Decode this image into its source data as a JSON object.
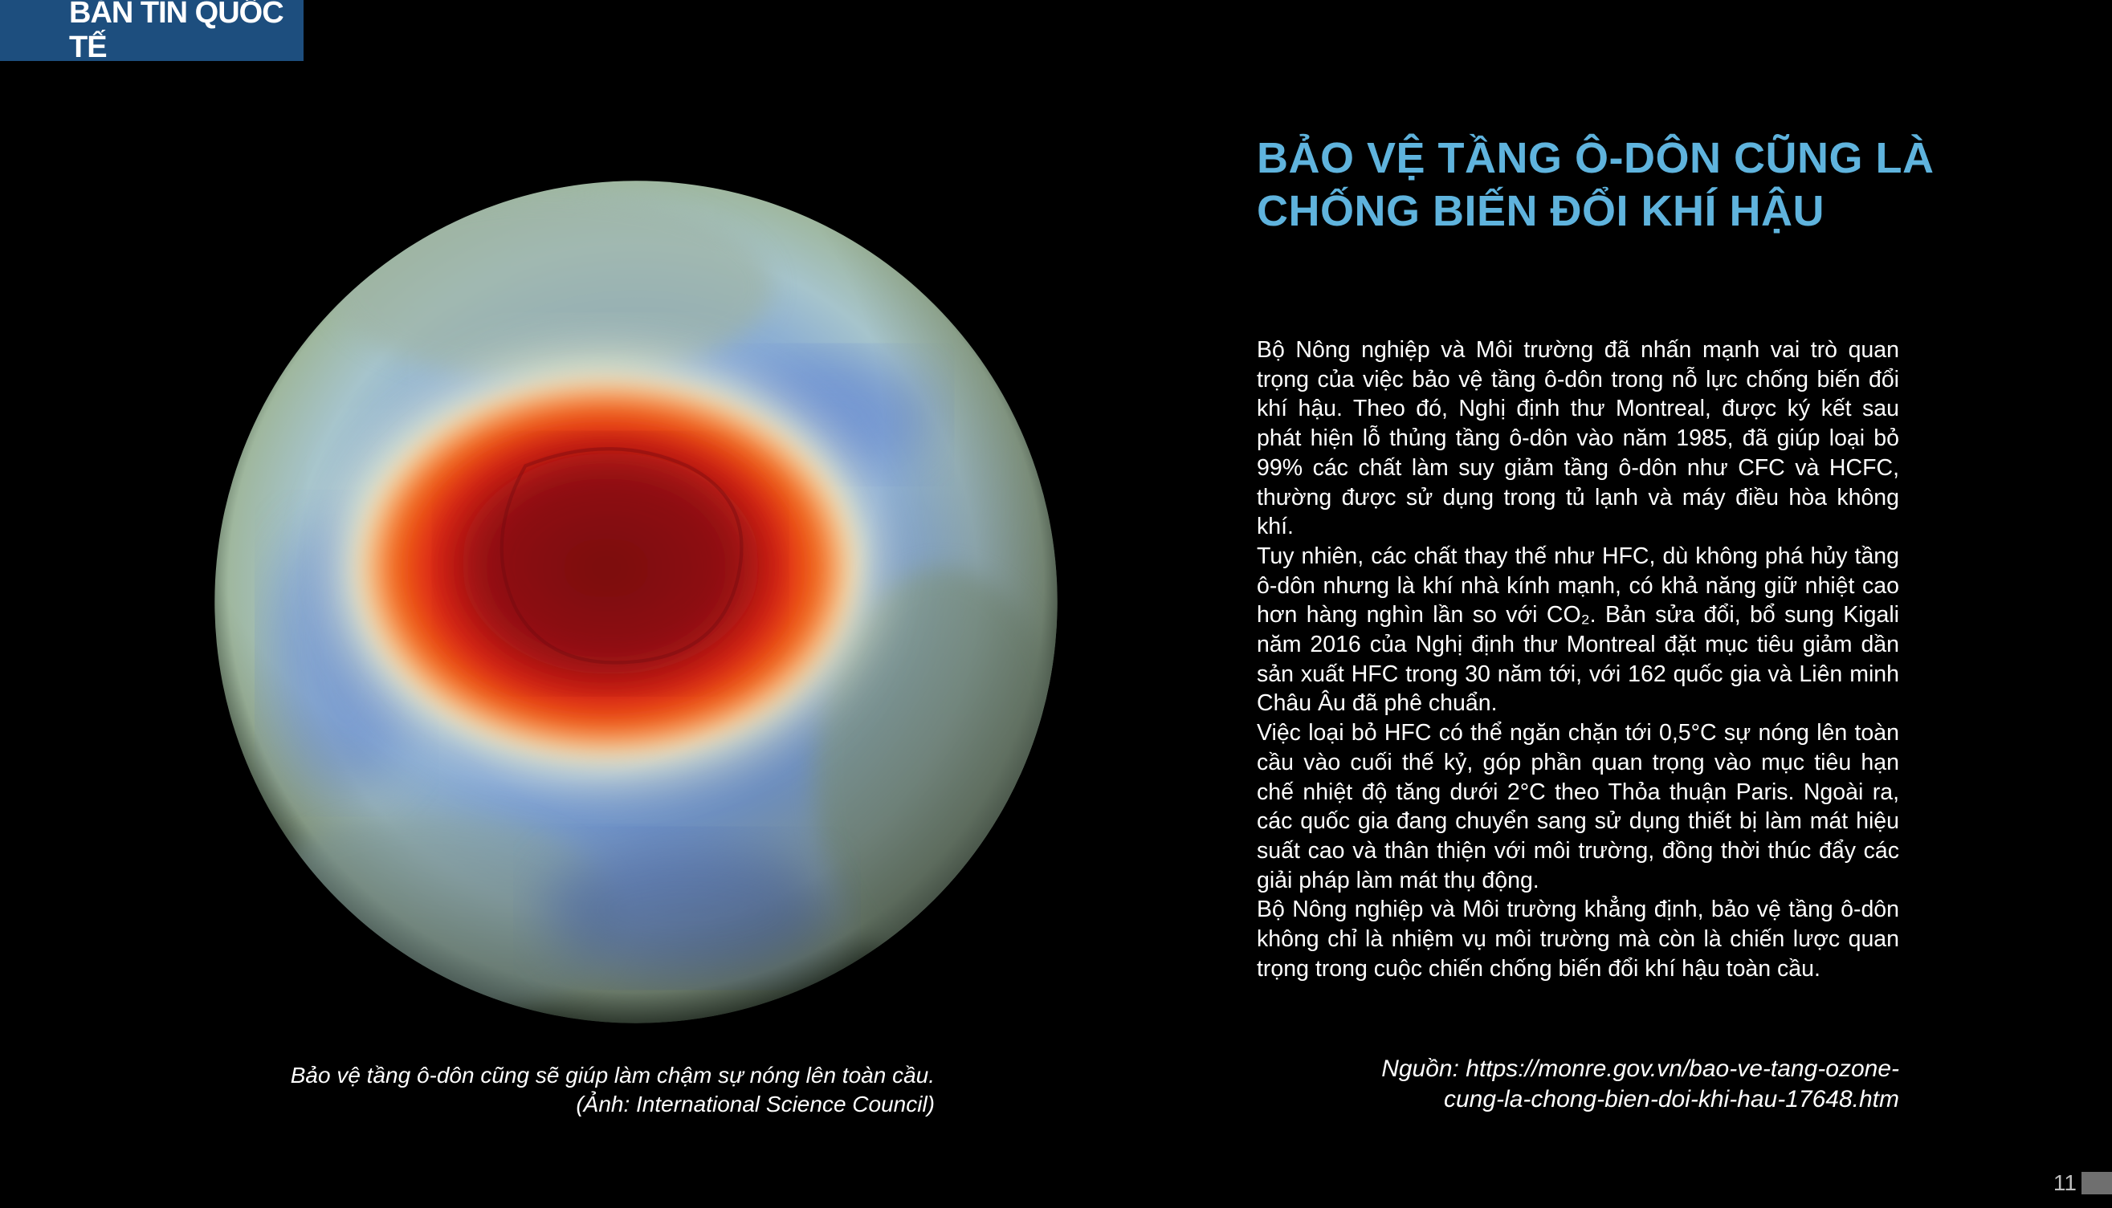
{
  "header": {
    "section_tag": "BẢN TIN QUỐC TẾ"
  },
  "article": {
    "title_line1": "BẢO VỆ TẦNG Ô-DÔN CŨNG LÀ",
    "title_line2": "CHỐNG BIẾN ĐỔI KHÍ HẬU",
    "paragraphs": [
      "Bộ Nông nghiệp và Môi trường đã nhấn mạnh vai trò quan trọng của việc bảo vệ tầng ô-dôn trong nỗ lực chống biến đổi khí hậu. Theo đó, Nghị định thư Montreal, được ký kết sau phát hiện lỗ thủng tầng ô-dôn vào năm 1985, đã giúp loại bỏ 99% các chất làm suy giảm tầng ô-dôn như CFC và HCFC, thường được sử dụng trong tủ lạnh và máy điều hòa không khí.",
      "Tuy nhiên, các chất thay thế như HFC, dù không phá hủy tầng ô-dôn nhưng là khí nhà kính mạnh, có khả năng giữ nhiệt cao hơn hàng nghìn lần so với CO₂. Bản sửa đổi, bổ sung Kigali năm 2016 của Nghị định thư Montreal đặt mục tiêu giảm dần sản xuất HFC trong 30 năm tới, với 162 quốc gia và Liên minh Châu Âu đã phê chuẩn.",
      "Việc loại bỏ HFC có thể ngăn chặn tới 0,5°C sự nóng lên toàn cầu vào cuối thế kỷ, góp phần quan trọng vào mục tiêu hạn chế nhiệt độ tăng dưới 2°C theo Thỏa thuận Paris. Ngoài ra, các quốc gia đang chuyển sang sử dụng thiết bị làm mát hiệu suất cao và thân thiện với môi trường, đồng thời thúc đẩy các giải pháp làm mát thụ động.",
      "Bộ Nông nghiệp và Môi trường khẳng định, bảo vệ tầng ô-dôn không chỉ là nhiệm vụ môi trường mà còn là chiến lược quan trọng trong cuộc chiến chống biến đổi khí hậu toàn cầu."
    ],
    "source_line1": "Nguồn: https://monre.gov.vn/bao-ve-tang-ozone-",
    "source_line2": "cung-la-chong-bien-doi-khi-hau-17648.htm"
  },
  "image": {
    "caption_line1": "Bảo vệ tầng ô-dôn cũng sẽ giúp làm chậm sự nóng lên toàn cầu.",
    "caption_line2": "(Ảnh: International Science Council)"
  },
  "footer": {
    "page_number": "11"
  },
  "colors": {
    "tag_background": "#1d4e7e",
    "title": "#5fb3dd",
    "ozone_hole_core": "#8e0a12",
    "ozone_hole_edge": "#f2461a"
  }
}
